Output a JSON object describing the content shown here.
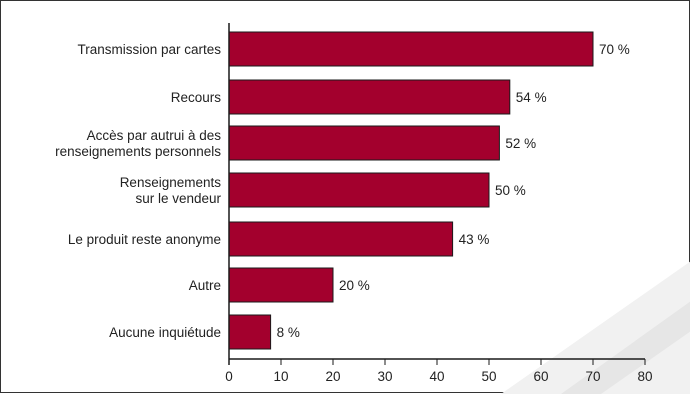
{
  "chart_data": {
    "type": "bar",
    "orientation": "horizontal",
    "categories": [
      [
        "Transmission par cartes"
      ],
      [
        "Recours"
      ],
      [
        "Accès par autrui à des",
        "renseignements personnels"
      ],
      [
        "Renseignements",
        "sur le vendeur"
      ],
      [
        "Le produit reste anonyme"
      ],
      [
        "Autre"
      ],
      [
        "Aucune inquiétude"
      ]
    ],
    "values": [
      70,
      54,
      52,
      50,
      43,
      20,
      8
    ],
    "value_labels": [
      "70 %",
      "54 %",
      "52 %",
      "50 %",
      "43 %",
      "20 %",
      "8 %"
    ],
    "xlim": [
      0,
      80
    ],
    "xticks": [
      0,
      10,
      20,
      30,
      40,
      50,
      60,
      70,
      80
    ],
    "grid": false,
    "bar_color": "#a3002d",
    "bar_stroke": "#1a1a1a"
  }
}
